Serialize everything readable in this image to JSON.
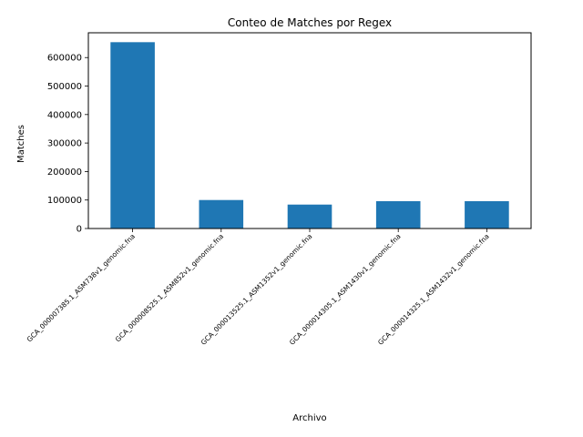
{
  "chart_data": {
    "type": "bar",
    "title": "Conteo de Matches por Regex",
    "xlabel": "Archivo",
    "ylabel": "Matches",
    "categories": [
      "GCA_000007385.1_ASM738v1_genomic.fna",
      "GCA_000008525.1_ASM852v1_genomic.fna",
      "GCA_000013525.1_ASM1352v1_genomic.fna",
      "GCA_000014305.1_ASM1430v1_genomic.fna",
      "GCA_000014325.1_ASM1432v1_genomic.fna"
    ],
    "values": [
      654000,
      100000,
      84000,
      96000,
      96000
    ],
    "ylim": [
      0,
      687000
    ],
    "yticks": [
      0,
      100000,
      200000,
      300000,
      400000,
      500000,
      600000
    ],
    "ytick_labels": [
      "0",
      "100000",
      "200000",
      "300000",
      "400000",
      "500000",
      "600000"
    ],
    "bar_color": "#1f77b4",
    "grid": false,
    "legend": "none"
  }
}
